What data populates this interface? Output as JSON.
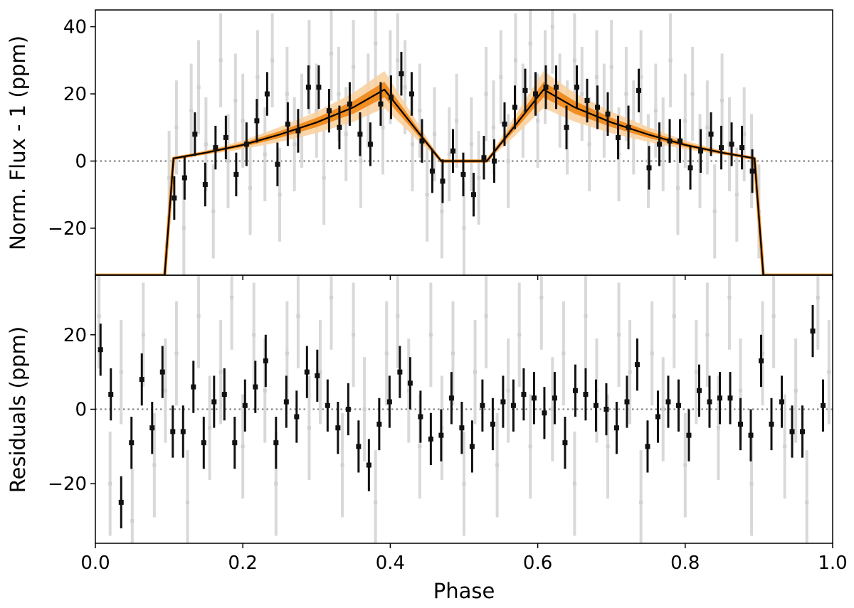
{
  "chart_data": [
    {
      "type": "scatter",
      "panel": "top",
      "ylabel": "Norm. Flux - 1 (ppm)",
      "xlabel": "",
      "xlim": [
        0.0,
        1.0
      ],
      "ylim": [
        -34,
        45
      ],
      "yticks": [
        -20,
        0,
        20,
        40
      ],
      "ytick_labels": [
        "−20",
        "0",
        "20",
        "40"
      ],
      "xticks": [
        0.0,
        0.2,
        0.4,
        0.6,
        0.8,
        1.0
      ],
      "reference_line": {
        "y": 0,
        "style": "dotted",
        "color": "#888888"
      },
      "colors": {
        "binned": "#111111",
        "unbinned": "#d9d9d9",
        "model": "#000000",
        "band_inner": "#f08a1c",
        "band_outer": "#f9cf9c"
      },
      "model": {
        "x": [
          0.0,
          0.094,
          0.106,
          0.15,
          0.2,
          0.25,
          0.3,
          0.35,
          0.392,
          0.44,
          0.469,
          0.531,
          0.56,
          0.608,
          0.65,
          0.7,
          0.75,
          0.8,
          0.85,
          0.894,
          0.906,
          1.0
        ],
        "y": [
          -34,
          -34,
          0.8,
          2.5,
          4.8,
          7.9,
          11.5,
          16.0,
          21.3,
          8.0,
          0.0,
          0.0,
          8.0,
          21.3,
          16.0,
          11.5,
          7.9,
          4.8,
          2.5,
          0.8,
          -34,
          -34
        ],
        "band_inner_halfwidth": [
          0,
          0,
          0,
          0.3,
          0.6,
          1.0,
          1.4,
          1.9,
          2.3,
          1.0,
          0,
          0,
          1.0,
          2.3,
          1.9,
          1.4,
          1.0,
          0.6,
          0.3,
          0,
          0,
          0
        ],
        "band_outer_halfwidth": [
          0,
          0,
          0,
          0.6,
          1.3,
          2.2,
          3.2,
          4.3,
          5.5,
          2.4,
          0,
          0,
          2.4,
          5.5,
          4.3,
          3.2,
          2.2,
          1.3,
          0.6,
          0,
          0,
          0
        ]
      },
      "binned": {
        "x": [
          0.107,
          0.121,
          0.135,
          0.149,
          0.163,
          0.177,
          0.191,
          0.205,
          0.219,
          0.233,
          0.247,
          0.261,
          0.275,
          0.289,
          0.303,
          0.317,
          0.331,
          0.345,
          0.359,
          0.373,
          0.387,
          0.401,
          0.415,
          0.429,
          0.443,
          0.457,
          0.471,
          0.485,
          0.499,
          0.513,
          0.527,
          0.541,
          0.555,
          0.569,
          0.583,
          0.597,
          0.611,
          0.625,
          0.639,
          0.653,
          0.667,
          0.681,
          0.695,
          0.709,
          0.723,
          0.737,
          0.751,
          0.765,
          0.779,
          0.793,
          0.807,
          0.821,
          0.835,
          0.849,
          0.863,
          0.877,
          0.891
        ],
        "y": [
          -11,
          -5,
          8,
          -7,
          4,
          7,
          -4,
          5,
          12,
          20,
          -1,
          11,
          9,
          22,
          22,
          15,
          10,
          17,
          8,
          5,
          17,
          19,
          26,
          20,
          6,
          -3,
          -6,
          3,
          -4,
          -10,
          1,
          0,
          11,
          16,
          21,
          20,
          22,
          22,
          10,
          22,
          18,
          16,
          14,
          7,
          10,
          21,
          -2,
          5,
          6,
          6,
          -2,
          3,
          8,
          4,
          5,
          4,
          -3
        ],
        "err": [
          6.5,
          6.5,
          6.5,
          6.5,
          6.5,
          6.5,
          6.5,
          6.5,
          6.5,
          6.5,
          6.5,
          6.5,
          6.5,
          6.5,
          6.5,
          6.5,
          6.5,
          6.5,
          6.5,
          6.5,
          6.5,
          6.5,
          6.5,
          6.5,
          6.5,
          6.5,
          6.5,
          6.5,
          6.5,
          6.5,
          6.5,
          6.5,
          6.5,
          6.5,
          6.5,
          6.5,
          6.5,
          6.5,
          6.5,
          6.5,
          6.5,
          6.5,
          6.5,
          6.5,
          6.5,
          6.5,
          6.5,
          6.5,
          6.5,
          6.5,
          6.5,
          6.5,
          6.5,
          6.5,
          6.5,
          6.5,
          6.5
        ]
      },
      "unbinned": {
        "x": [
          0.1,
          0.11,
          0.12,
          0.13,
          0.14,
          0.15,
          0.16,
          0.17,
          0.18,
          0.19,
          0.2,
          0.21,
          0.22,
          0.23,
          0.24,
          0.25,
          0.26,
          0.27,
          0.28,
          0.29,
          0.3,
          0.31,
          0.32,
          0.33,
          0.34,
          0.35,
          0.36,
          0.37,
          0.38,
          0.39,
          0.4,
          0.41,
          0.42,
          0.43,
          0.44,
          0.45,
          0.46,
          0.47,
          0.48,
          0.49,
          0.5,
          0.51,
          0.52,
          0.53,
          0.54,
          0.55,
          0.56,
          0.57,
          0.58,
          0.59,
          0.6,
          0.61,
          0.62,
          0.63,
          0.64,
          0.65,
          0.66,
          0.67,
          0.68,
          0.69,
          0.7,
          0.71,
          0.72,
          0.73,
          0.74,
          0.75,
          0.76,
          0.77,
          0.78,
          0.79,
          0.8,
          0.81,
          0.82,
          0.83,
          0.84,
          0.85,
          0.86,
          0.87,
          0.88,
          0.89,
          0.9
        ],
        "y": [
          -5,
          10,
          -20,
          15,
          22,
          5,
          -15,
          30,
          0,
          18,
          12,
          -8,
          25,
          2,
          30,
          -10,
          20,
          5,
          12,
          28,
          15,
          -5,
          32,
          20,
          8,
          28,
          0,
          18,
          35,
          10,
          25,
          30,
          22,
          5,
          15,
          -10,
          8,
          -15,
          2,
          12,
          -20,
          5,
          -5,
          20,
          10,
          25,
          0,
          30,
          15,
          35,
          12,
          25,
          40,
          18,
          10,
          30,
          20,
          5,
          25,
          15,
          28,
          2,
          20,
          10,
          25,
          0,
          15,
          5,
          30,
          -8,
          12,
          20,
          0,
          10,
          -15,
          18,
          5,
          -10,
          8,
          0,
          -15
        ],
        "err": [
          14,
          14,
          14,
          14,
          14,
          14,
          14,
          14,
          14,
          14,
          14,
          14,
          14,
          14,
          14,
          14,
          14,
          14,
          14,
          14,
          14,
          14,
          14,
          14,
          14,
          14,
          14,
          14,
          14,
          14,
          14,
          14,
          14,
          14,
          14,
          14,
          14,
          14,
          14,
          14,
          14,
          14,
          14,
          14,
          14,
          14,
          14,
          14,
          14,
          14,
          14,
          14,
          14,
          14,
          14,
          14,
          14,
          14,
          14,
          14,
          14,
          14,
          14,
          14,
          14,
          14,
          14,
          14,
          14,
          14,
          14,
          14,
          14,
          14,
          14,
          14,
          14,
          14,
          14,
          14,
          14
        ]
      }
    },
    {
      "type": "scatter",
      "panel": "bottom",
      "ylabel": "Residuals (ppm)",
      "xlabel": "Phase",
      "xlim": [
        0.0,
        1.0
      ],
      "ylim": [
        -36,
        36
      ],
      "yticks": [
        -20,
        0,
        20
      ],
      "ytick_labels": [
        "−20",
        "0",
        "20"
      ],
      "xticks": [
        0.0,
        0.2,
        0.4,
        0.6,
        0.8,
        1.0
      ],
      "xtick_labels": [
        "0.0",
        "0.2",
        "0.4",
        "0.6",
        "0.8",
        "1.0"
      ],
      "reference_line": {
        "y": 0,
        "style": "dotted",
        "color": "#888888"
      },
      "colors": {
        "binned": "#111111",
        "unbinned": "#d9d9d9"
      },
      "binned": {
        "x": [
          0.007,
          0.021,
          0.035,
          0.049,
          0.063,
          0.077,
          0.091,
          0.105,
          0.119,
          0.133,
          0.147,
          0.161,
          0.175,
          0.189,
          0.203,
          0.217,
          0.231,
          0.245,
          0.259,
          0.273,
          0.287,
          0.301,
          0.315,
          0.329,
          0.343,
          0.357,
          0.371,
          0.385,
          0.399,
          0.413,
          0.427,
          0.441,
          0.455,
          0.469,
          0.483,
          0.497,
          0.511,
          0.525,
          0.539,
          0.553,
          0.567,
          0.581,
          0.595,
          0.609,
          0.623,
          0.637,
          0.651,
          0.665,
          0.679,
          0.693,
          0.707,
          0.721,
          0.735,
          0.749,
          0.763,
          0.777,
          0.791,
          0.805,
          0.819,
          0.833,
          0.847,
          0.861,
          0.875,
          0.889,
          0.903,
          0.917,
          0.931,
          0.945,
          0.959,
          0.973,
          0.987
        ],
        "y": [
          16,
          4,
          -25,
          -9,
          8,
          -5,
          10,
          -6,
          -6,
          6,
          -9,
          2,
          4,
          -9,
          1,
          6,
          13,
          -9,
          2,
          -2,
          10,
          9,
          1,
          -5,
          0,
          -10,
          -15,
          -4,
          2,
          10,
          7,
          -2,
          -8,
          -7,
          3,
          -5,
          -10,
          1,
          -4,
          2,
          1,
          4,
          3,
          -1,
          3,
          -9,
          5,
          4,
          1,
          0,
          -5,
          2,
          12,
          -10,
          -2,
          2,
          1,
          -7,
          5,
          2,
          3,
          3,
          -4,
          -7,
          13,
          -4,
          2,
          -6,
          -6,
          21,
          1
        ],
        "err": [
          7,
          7,
          7,
          7,
          7,
          7,
          7,
          7,
          7,
          7,
          7,
          7,
          7,
          7,
          7,
          7,
          7,
          7,
          7,
          7,
          7,
          7,
          7,
          7,
          7,
          7,
          7,
          7,
          7,
          7,
          7,
          7,
          7,
          7,
          7,
          7,
          7,
          7,
          7,
          7,
          7,
          7,
          7,
          7,
          7,
          7,
          7,
          7,
          7,
          7,
          7,
          7,
          7,
          7,
          7,
          7,
          7,
          7,
          7,
          7,
          7,
          7,
          7,
          7,
          7,
          7,
          7,
          7,
          7,
          7,
          7
        ]
      },
      "unbinned": {
        "x": [
          0.005,
          0.02,
          0.035,
          0.05,
          0.065,
          0.08,
          0.095,
          0.11,
          0.125,
          0.14,
          0.155,
          0.17,
          0.185,
          0.2,
          0.215,
          0.23,
          0.245,
          0.26,
          0.275,
          0.29,
          0.305,
          0.32,
          0.335,
          0.35,
          0.365,
          0.38,
          0.395,
          0.41,
          0.425,
          0.44,
          0.455,
          0.47,
          0.485,
          0.5,
          0.515,
          0.53,
          0.545,
          0.56,
          0.575,
          0.59,
          0.605,
          0.62,
          0.635,
          0.65,
          0.665,
          0.68,
          0.695,
          0.71,
          0.725,
          0.74,
          0.755,
          0.77,
          0.785,
          0.8,
          0.815,
          0.83,
          0.845,
          0.86,
          0.875,
          0.89,
          0.905,
          0.92,
          0.935,
          0.95,
          0.965,
          0.98,
          0.995
        ],
        "y": [
          25,
          -20,
          10,
          -30,
          20,
          -15,
          5,
          15,
          -25,
          25,
          -5,
          10,
          30,
          -10,
          20,
          5,
          -20,
          15,
          25,
          -5,
          10,
          30,
          -15,
          20,
          0,
          -25,
          15,
          25,
          5,
          -10,
          20,
          -5,
          15,
          -20,
          10,
          25,
          -15,
          5,
          20,
          -10,
          30,
          0,
          15,
          -20,
          25,
          5,
          -10,
          20,
          10,
          -25,
          15,
          0,
          25,
          -15,
          10,
          20,
          -5,
          30,
          5,
          -20,
          15,
          25,
          -10,
          5,
          -25,
          30,
          10
        ],
        "err": [
          14,
          14,
          14,
          14,
          14,
          14,
          14,
          14,
          14,
          14,
          14,
          14,
          14,
          14,
          14,
          14,
          14,
          14,
          14,
          14,
          14,
          14,
          14,
          14,
          14,
          14,
          14,
          14,
          14,
          14,
          14,
          14,
          14,
          14,
          14,
          14,
          14,
          14,
          14,
          14,
          14,
          14,
          14,
          14,
          14,
          14,
          14,
          14,
          14,
          14,
          14,
          14,
          14,
          14,
          14,
          14,
          14,
          14,
          14,
          14,
          14,
          14,
          14,
          14,
          14,
          14,
          14
        ]
      }
    }
  ]
}
